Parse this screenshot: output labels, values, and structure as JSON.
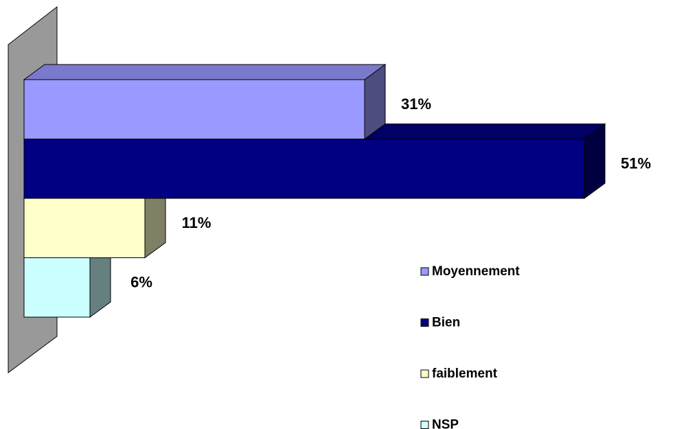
{
  "chart_data": {
    "type": "bar3d-horizontal",
    "series": [
      {
        "name": "Moyennement",
        "color": "#9999ff",
        "values": [
          31
        ],
        "value_labels": [
          "31%"
        ]
      },
      {
        "name": "Bien",
        "color": "#000080",
        "values": [
          51
        ],
        "value_labels": [
          "51%"
        ]
      },
      {
        "name": "faiblement",
        "color": "#ffffcc",
        "values": [
          11
        ],
        "value_labels": [
          "11%"
        ]
      },
      {
        "name": "NSP",
        "color": "#ccffff",
        "values": [
          6
        ],
        "value_labels": [
          "6%"
        ]
      }
    ]
  }
}
